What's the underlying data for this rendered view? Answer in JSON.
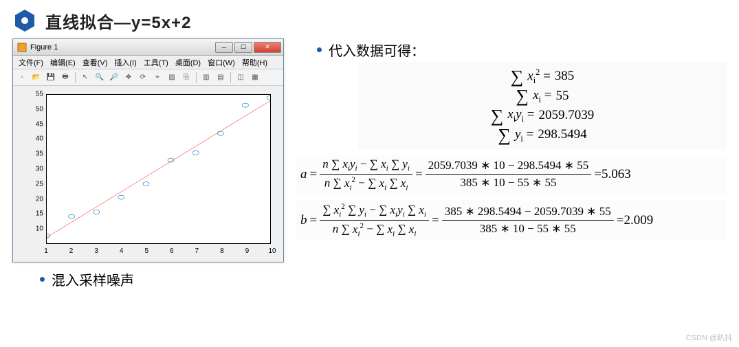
{
  "header": {
    "icon_color": "#1e5aa8",
    "title": "直线拟合—y=5x+2"
  },
  "figure": {
    "window_title": "Figure 1",
    "menu_items": [
      "文件(F)",
      "编辑(E)",
      "查看(V)",
      "插入(I)",
      "工具(T)",
      "桌面(D)",
      "窗口(W)",
      "帮助(H)"
    ],
    "toolbar_icons": [
      "new-icon",
      "open-icon",
      "save-icon",
      "print-icon",
      "sep",
      "pointer-icon",
      "zoom-in-icon",
      "zoom-out-icon",
      "pan-icon",
      "rotate-icon",
      "data-cursor-icon",
      "brush-icon",
      "link-icon",
      "sep",
      "colorbar-icon",
      "legend-icon",
      "sep",
      "axes-icon",
      "grid-icon"
    ],
    "chart": {
      "type": "scatter+line",
      "xlim": [
        1,
        10
      ],
      "ylim": [
        5,
        55
      ],
      "xticks": [
        1,
        2,
        3,
        4,
        5,
        6,
        7,
        8,
        9,
        10
      ],
      "yticks": [
        10,
        15,
        20,
        25,
        30,
        35,
        40,
        45,
        50,
        55
      ],
      "scatter_points": [
        {
          "x": 1,
          "y": 7.5
        },
        {
          "x": 2,
          "y": 14
        },
        {
          "x": 3,
          "y": 15.5
        },
        {
          "x": 4,
          "y": 20.5
        },
        {
          "x": 5,
          "y": 25
        },
        {
          "x": 6,
          "y": 33
        },
        {
          "x": 7,
          "y": 35.5
        },
        {
          "x": 8,
          "y": 42
        },
        {
          "x": 9,
          "y": 51.5
        },
        {
          "x": 10,
          "y": 54
        }
      ],
      "marker_style": "circle",
      "marker_edge_color": "#0072bd",
      "marker_fill": "none",
      "marker_size": 5,
      "line_color": "#ff0000",
      "line_width": 1,
      "line_from": {
        "x": 1,
        "y": 7
      },
      "line_to": {
        "x": 10,
        "y": 53
      },
      "axes_bg": "#ffffff",
      "figure_bg": "#f0f0f0",
      "tick_fontsize": 10,
      "tick_color": "#000000"
    }
  },
  "left_bullet": "混入采样噪声",
  "right_bullet": "代入数据可得：",
  "sums": {
    "sum_x2": "385",
    "sum_x": "55",
    "sum_xy": "2059.7039",
    "sum_y": "298.5494"
  },
  "eq_a": {
    "lhs": "a",
    "sym_num": "n ∑ xᵢyᵢ − ∑ xᵢ ∑ yᵢ",
    "sym_den": "n ∑ xᵢ² − ∑ xᵢ ∑ xᵢ",
    "num_num": "2059.7039 ∗ 10 − 298.5494 ∗ 55",
    "num_den": "385 ∗ 10 − 55 ∗ 55",
    "result": "5.063"
  },
  "eq_b": {
    "lhs": "b",
    "sym_num": "∑ xᵢ² ∑ yᵢ − ∑ xᵢyᵢ ∑ xᵢ",
    "sym_den": "n ∑ xᵢ² − ∑ xᵢ ∑ xᵢ",
    "num_num": "385 ∗ 298.5494 − 2059.7039 ∗ 55",
    "num_den": "385 ∗ 10 − 55 ∗ 55",
    "result": "2.009"
  },
  "watermark": "CSDN @趴抖"
}
